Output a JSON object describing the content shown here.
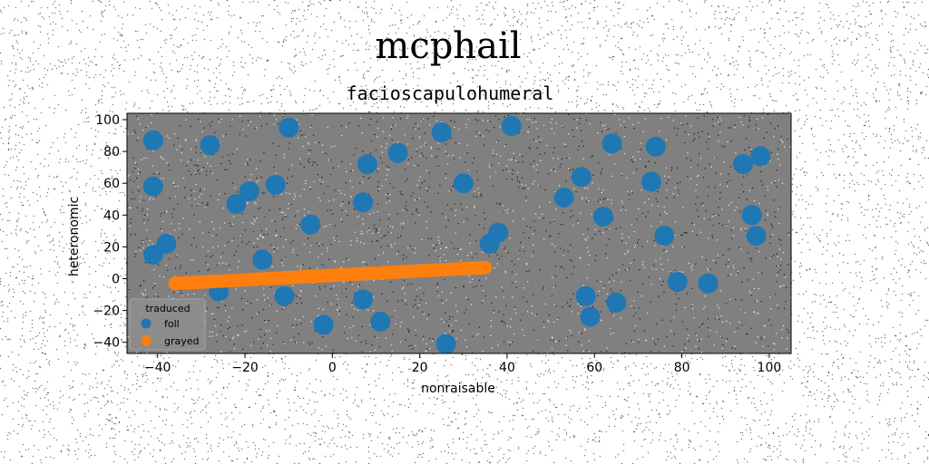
{
  "chart_data": {
    "type": "scatter",
    "title": "mcphail",
    "subtitle": "facioscapulohumeral",
    "xlabel": "nonraisable",
    "ylabel": "heteronomic",
    "xlim": [
      -47,
      105
    ],
    "ylim": [
      -47,
      104
    ],
    "xticks": [
      -40,
      -20,
      0,
      20,
      40,
      60,
      80,
      100
    ],
    "yticks": [
      -40,
      -20,
      0,
      20,
      40,
      60,
      80,
      100
    ],
    "grid": false,
    "legend_title": "traduced",
    "legend_position": "lower-left",
    "series": [
      {
        "name": "foll",
        "color": "#1f77b4",
        "points": [
          [
            -41,
            87
          ],
          [
            -41,
            58
          ],
          [
            -41,
            15
          ],
          [
            -38,
            22
          ],
          [
            -28,
            84
          ],
          [
            -22,
            47
          ],
          [
            -19,
            55
          ],
          [
            -13,
            59
          ],
          [
            -16,
            12
          ],
          [
            -11,
            -11
          ],
          [
            -10,
            95
          ],
          [
            -5,
            34
          ],
          [
            -2,
            -29
          ],
          [
            7,
            48
          ],
          [
            8,
            72
          ],
          [
            7,
            -13
          ],
          [
            11,
            -27
          ],
          [
            15,
            79
          ],
          [
            25,
            92
          ],
          [
            26,
            -41
          ],
          [
            30,
            60
          ],
          [
            36,
            22
          ],
          [
            38,
            29
          ],
          [
            41,
            96
          ],
          [
            53,
            51
          ],
          [
            57,
            64
          ],
          [
            58,
            -11
          ],
          [
            59,
            -24
          ],
          [
            62,
            39
          ],
          [
            64,
            85
          ],
          [
            65,
            -15
          ],
          [
            73,
            61
          ],
          [
            74,
            83
          ],
          [
            76,
            27
          ],
          [
            79,
            -2
          ],
          [
            86,
            -3
          ],
          [
            94,
            72
          ],
          [
            96,
            40
          ],
          [
            97,
            27
          ],
          [
            98,
            77
          ],
          [
            -26,
            -8
          ]
        ]
      },
      {
        "name": "grayed",
        "color": "#ff7f0e",
        "line": {
          "x_start": -36,
          "x_end": 35,
          "y_start": -3,
          "y_end": 7,
          "n": 72
        }
      }
    ]
  }
}
